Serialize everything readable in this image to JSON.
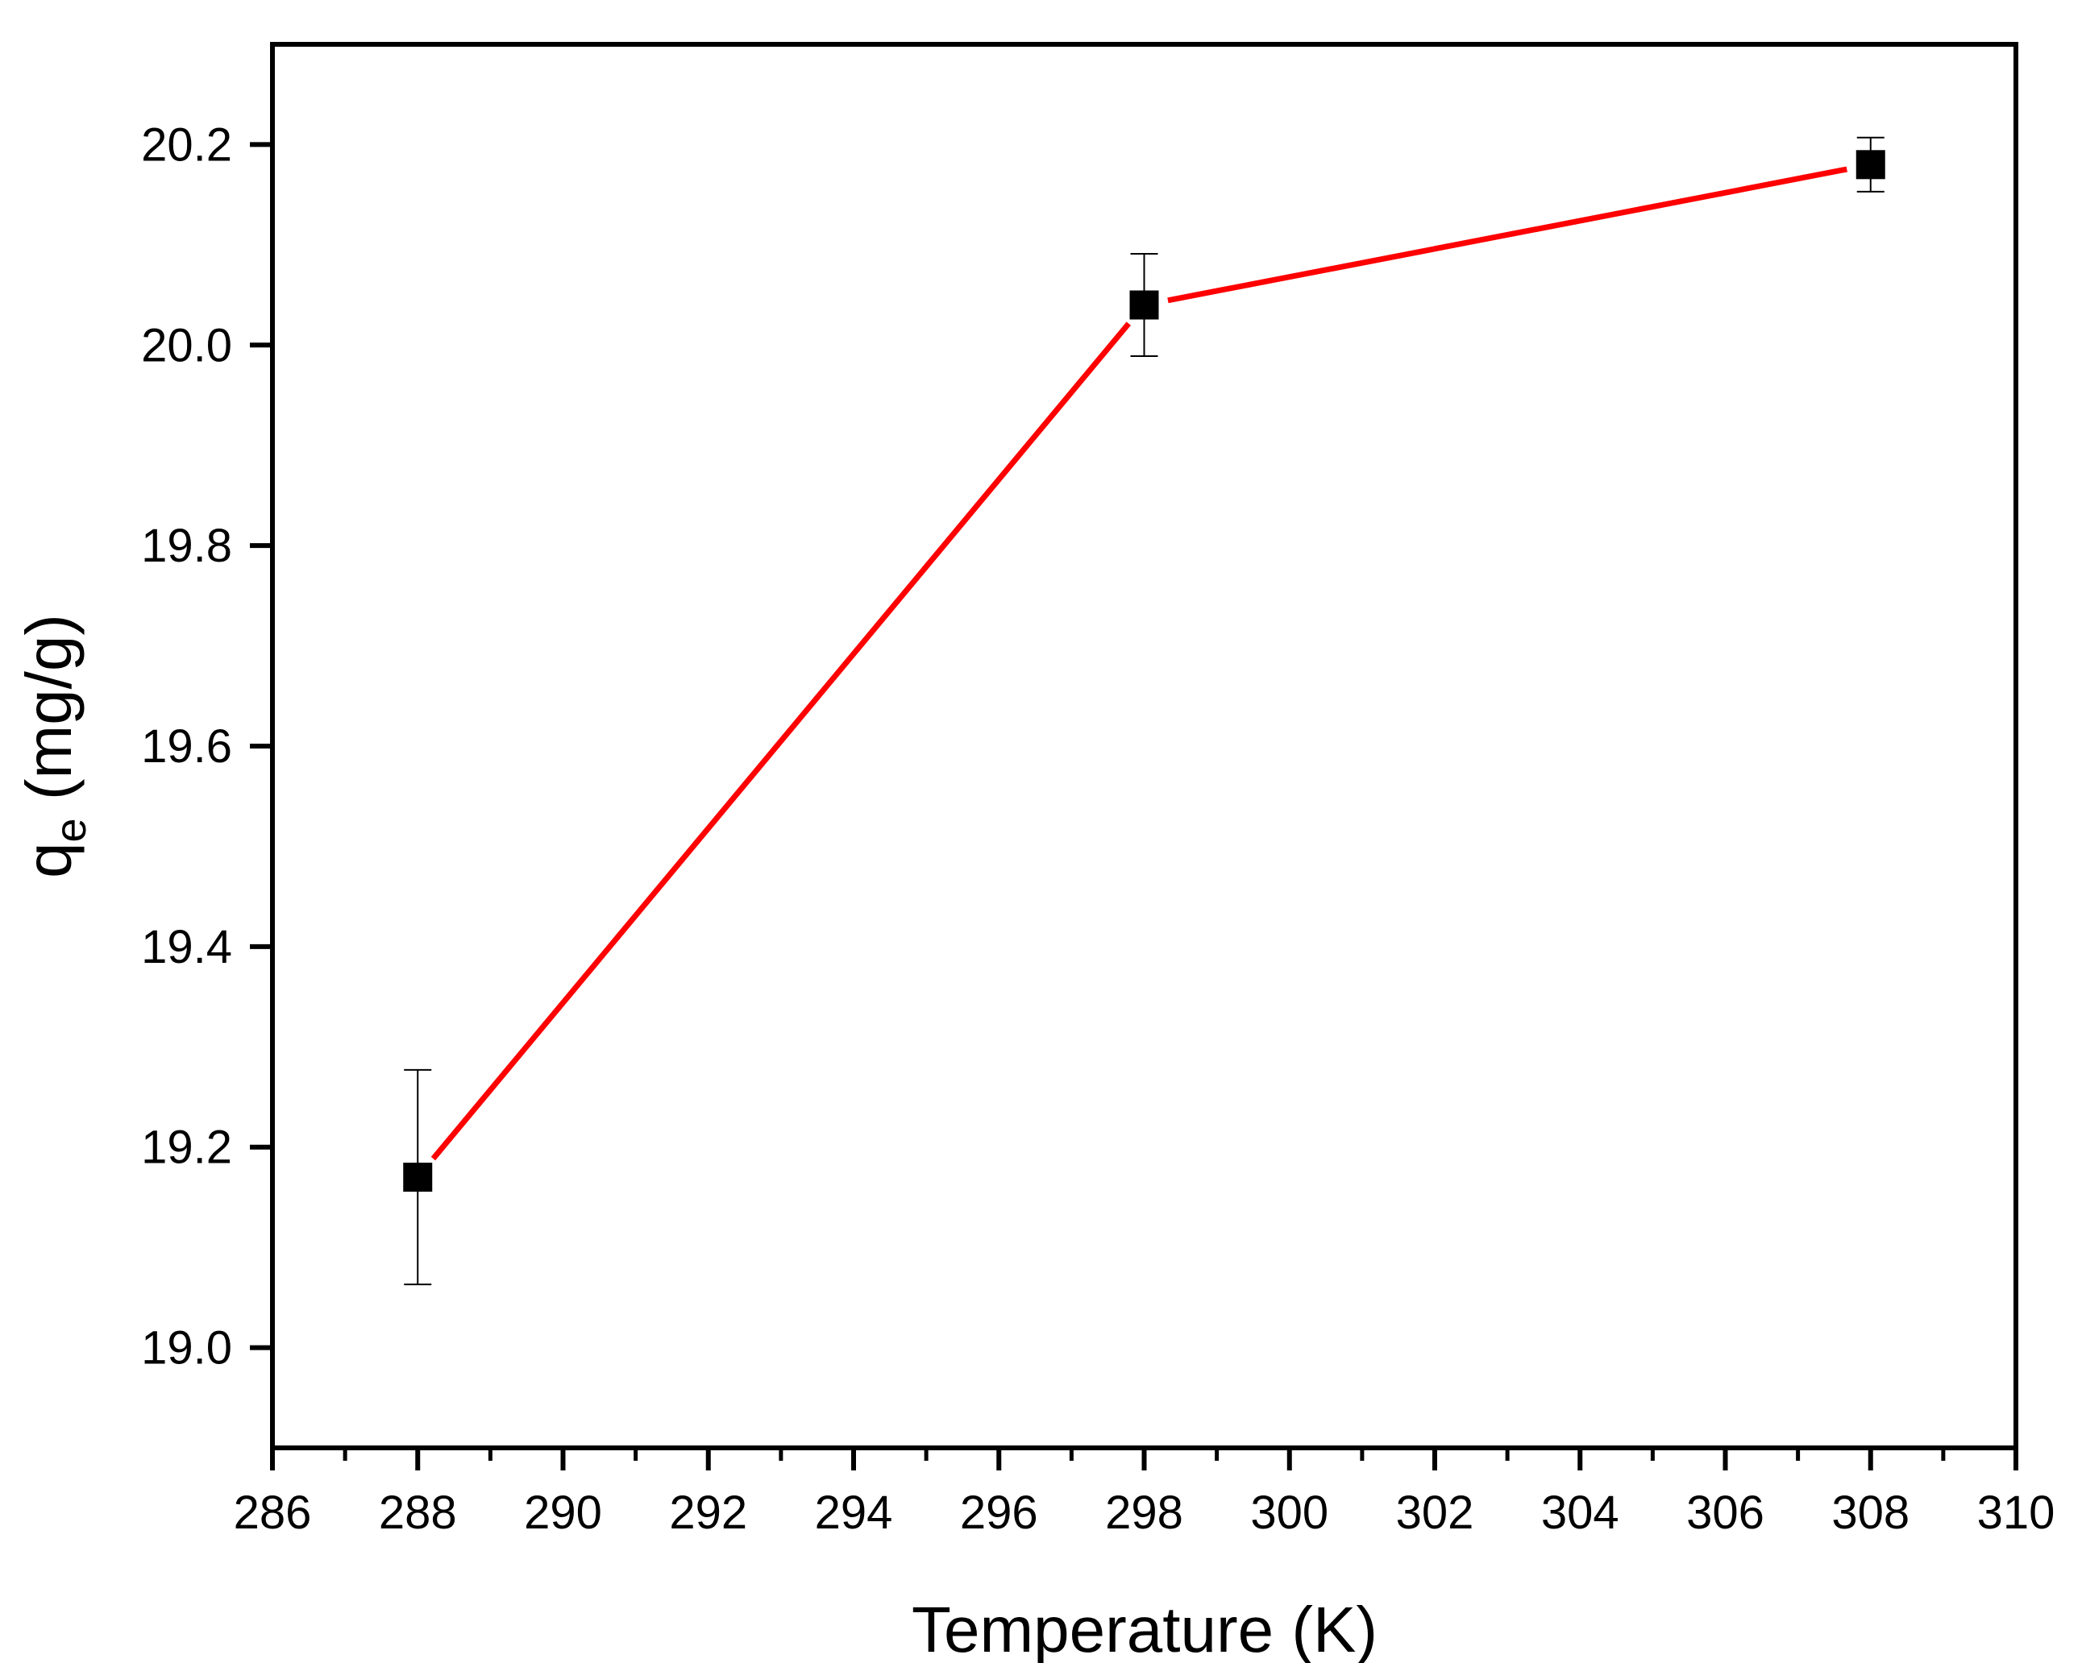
{
  "chart_data": {
    "type": "line",
    "xlabel": "Temperature (K)",
    "ylabel": {
      "main": "q",
      "sub": "e",
      "unit": " (mg/g)"
    },
    "xlim": [
      286,
      310
    ],
    "ylim": [
      18.9,
      20.3
    ],
    "xticks": [
      286,
      288,
      290,
      292,
      294,
      296,
      298,
      300,
      302,
      304,
      306,
      308,
      310
    ],
    "xtick_labels": [
      "286",
      "288",
      "290",
      "292",
      "294",
      "296",
      "298",
      "300",
      "302",
      "304",
      "306",
      "308",
      "310"
    ],
    "yticks": [
      19.0,
      19.2,
      19.4,
      19.6,
      19.8,
      20.0,
      20.2
    ],
    "ytick_labels": [
      "19.0",
      "19.2",
      "19.4",
      "19.6",
      "19.8",
      "20.0",
      "20.2"
    ],
    "grid": false,
    "series": [
      {
        "line_color": "#ff0000",
        "marker_color": "#000000",
        "marker": "square",
        "x": [
          288,
          298,
          308
        ],
        "y": [
          19.17,
          20.04,
          20.18
        ],
        "error": [
          0.107,
          0.051,
          0.027
        ]
      }
    ]
  }
}
